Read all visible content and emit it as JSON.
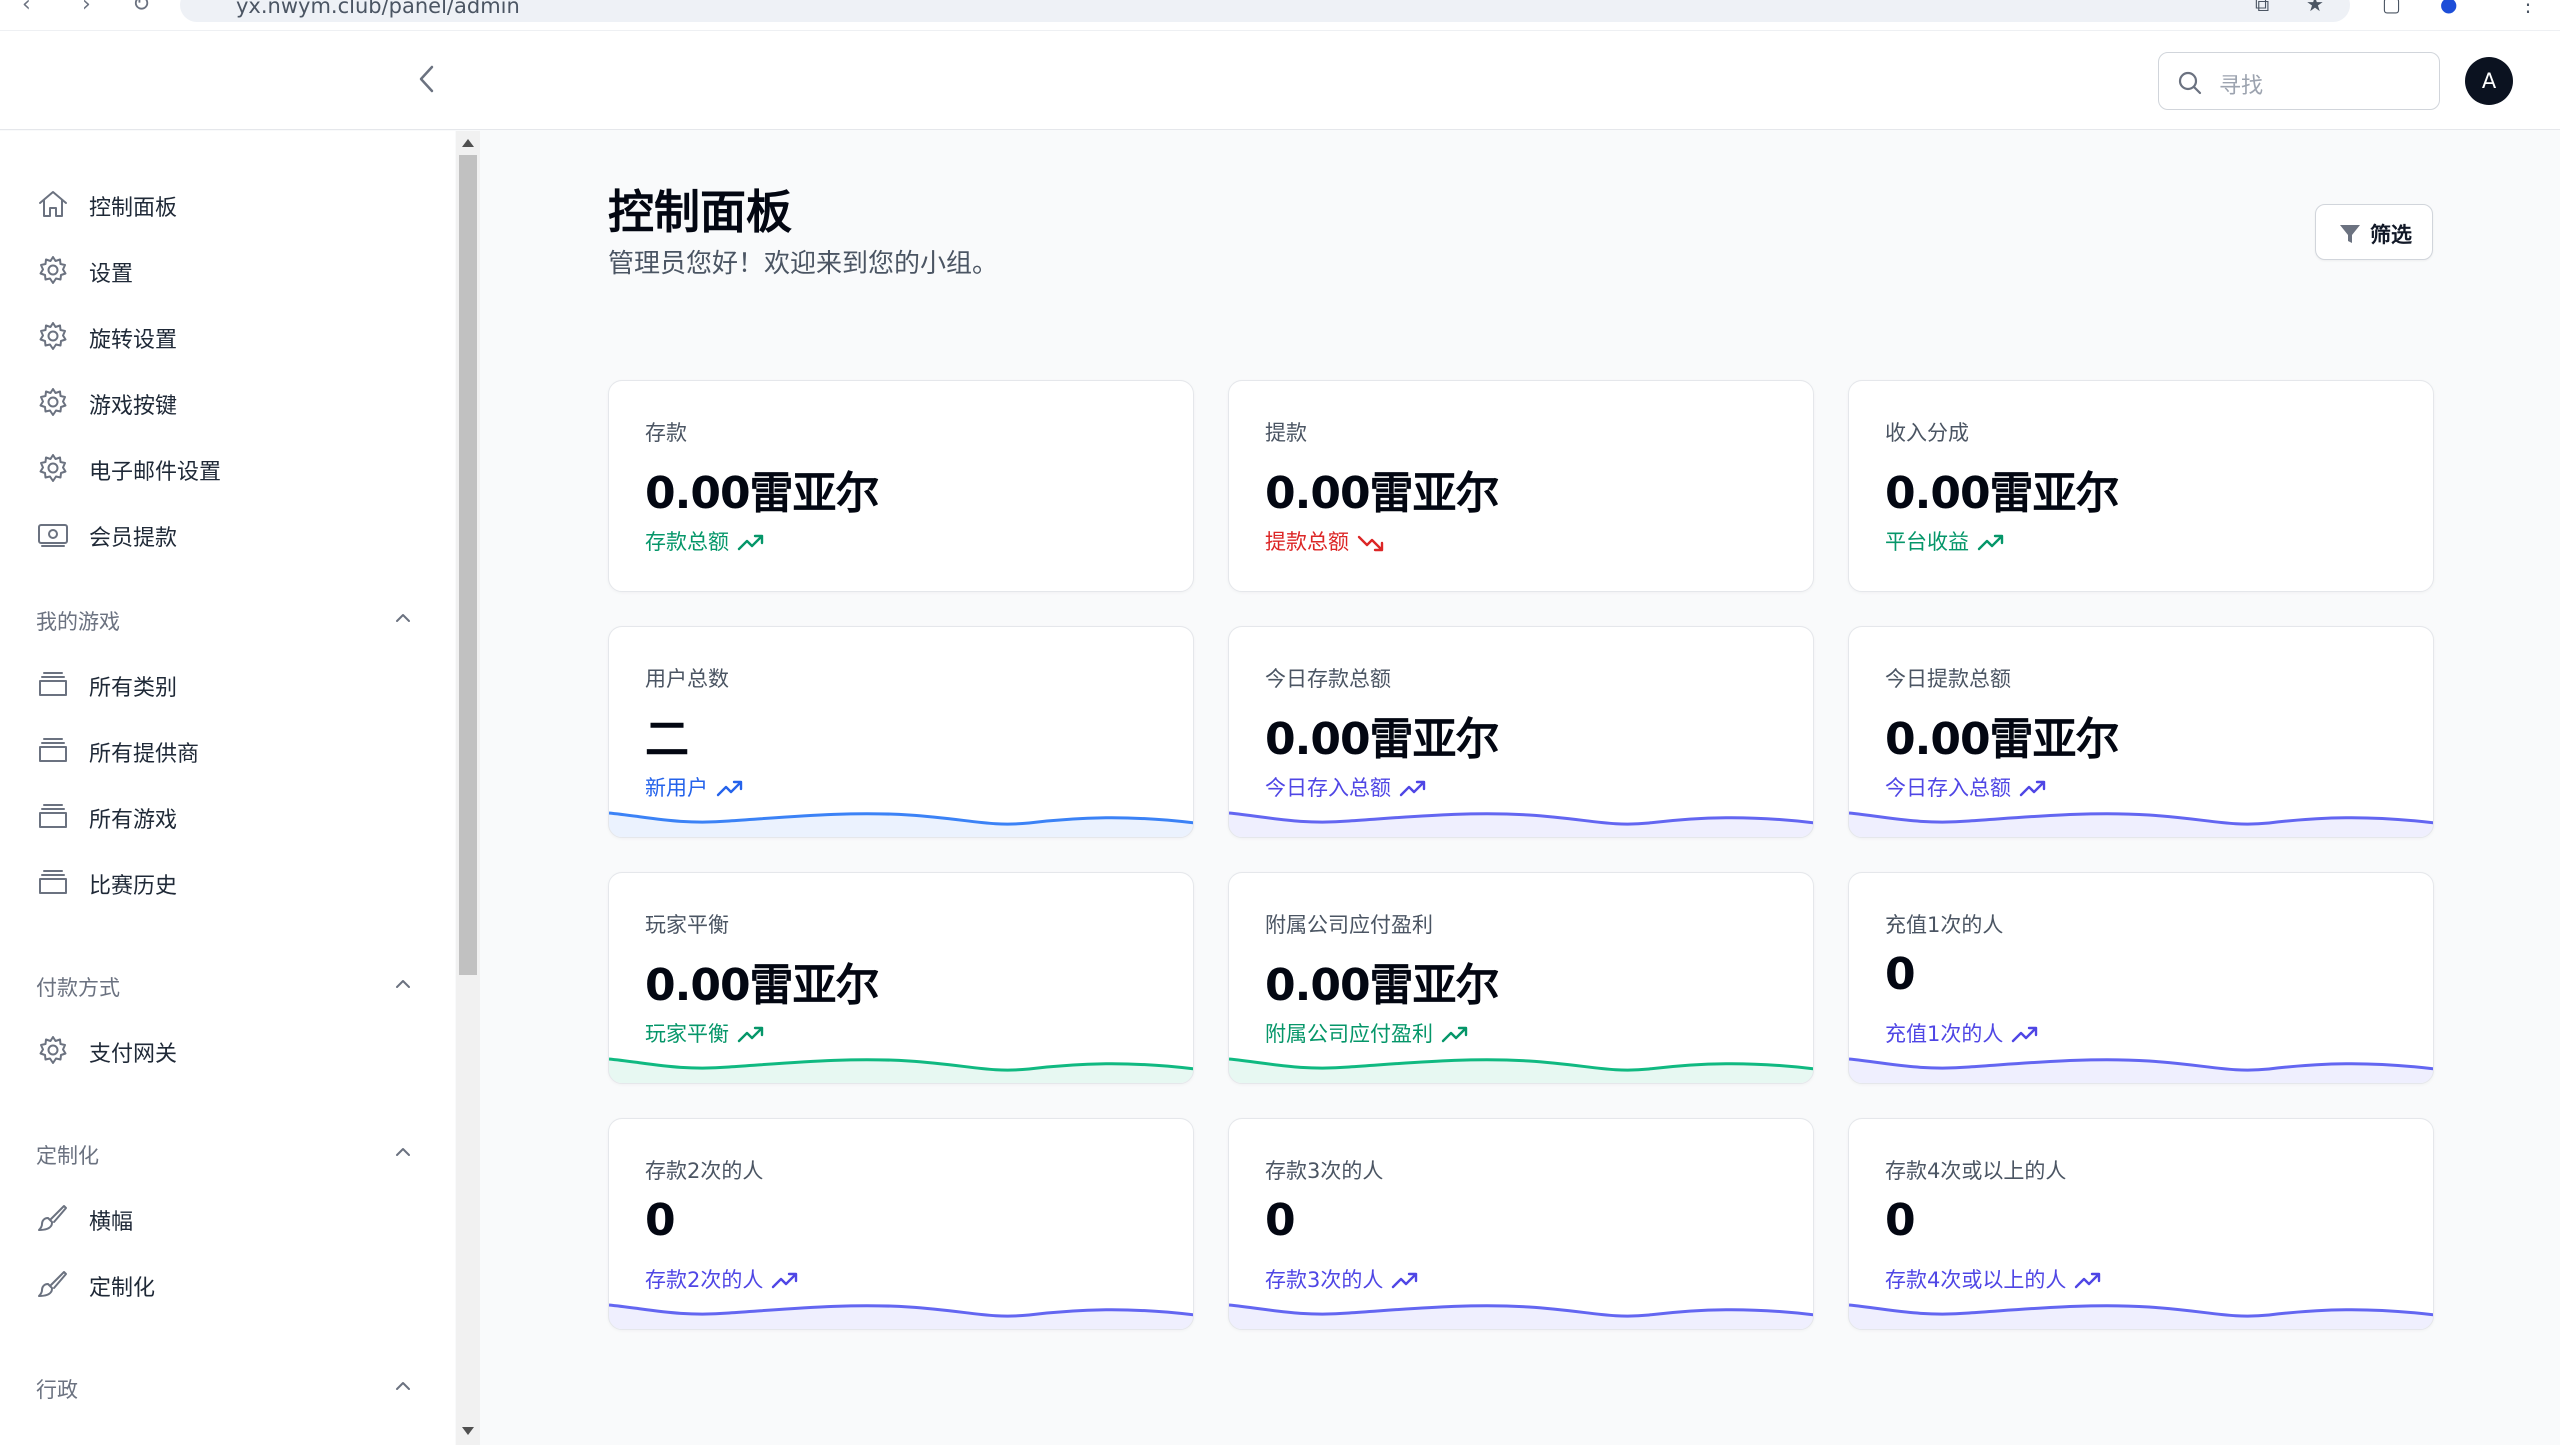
{
  "browser": {
    "url": "yx.nwym.club/panel/admin"
  },
  "header": {
    "search_placeholder": "寻找",
    "avatar_initial": "A"
  },
  "sidebar": {
    "top_items": [
      {
        "label": "控制面板",
        "icon": "home-icon"
      },
      {
        "label": "设置",
        "icon": "gear-icon"
      },
      {
        "label": "旋转设置",
        "icon": "gear-icon"
      },
      {
        "label": "游戏按键",
        "icon": "gear-icon"
      },
      {
        "label": "电子邮件设置",
        "icon": "gear-icon"
      },
      {
        "label": "会员提款",
        "icon": "cash-icon"
      }
    ],
    "sections": [
      {
        "title": "我的游戏",
        "items": [
          {
            "label": "所有类别",
            "icon": "archive-icon"
          },
          {
            "label": "所有提供商",
            "icon": "archive-icon"
          },
          {
            "label": "所有游戏",
            "icon": "archive-icon"
          },
          {
            "label": "比赛历史",
            "icon": "archive-icon"
          }
        ]
      },
      {
        "title": "付款方式",
        "items": [
          {
            "label": "支付网关",
            "icon": "gear-icon"
          }
        ]
      },
      {
        "title": "定制化",
        "items": [
          {
            "label": "横幅",
            "icon": "paintbrush-icon"
          },
          {
            "label": "定制化",
            "icon": "paintbrush-icon"
          }
        ]
      },
      {
        "title": "行政",
        "items": []
      }
    ]
  },
  "main": {
    "title": "控制面板",
    "subtitle": "管理员您好！欢迎来到您的小组。",
    "filter_label": "筛选",
    "colors": {
      "green": "#10b981",
      "red": "#ef4444",
      "blue": "#3b82f6",
      "indigo": "#6366f1"
    },
    "cards": [
      {
        "label": "存款",
        "value": "0.00雷亚尔",
        "desc": "存款总额",
        "trend": "up",
        "color": "#059669",
        "spark": false
      },
      {
        "label": "提款",
        "value": "0.00雷亚尔",
        "desc": "提款总额",
        "trend": "down",
        "color": "#dc2626",
        "spark": false
      },
      {
        "label": "收入分成",
        "value": "0.00雷亚尔",
        "desc": "平台收益",
        "trend": "up",
        "color": "#059669",
        "spark": false
      },
      {
        "label": "用户总数",
        "value": "二",
        "desc": "新用户",
        "trend": "up",
        "color": "#2563eb",
        "spark": true,
        "spark_color": "#3b82f6"
      },
      {
        "label": "今日存款总额",
        "value": "0.00雷亚尔",
        "desc": "今日存入总额",
        "trend": "up",
        "color": "#4f46e5",
        "spark": true,
        "spark_color": "#6366f1"
      },
      {
        "label": "今日提款总额",
        "value": "0.00雷亚尔",
        "desc": "今日存入总额",
        "trend": "up",
        "color": "#4f46e5",
        "spark": true,
        "spark_color": "#6366f1"
      },
      {
        "label": "玩家平衡",
        "value": "0.00雷亚尔",
        "desc": "玩家平衡",
        "trend": "up",
        "color": "#059669",
        "spark": true,
        "spark_color": "#10b981"
      },
      {
        "label": "附属公司应付盈利",
        "value": "0.00雷亚尔",
        "desc": "附属公司应付盈利",
        "trend": "up",
        "color": "#059669",
        "spark": true,
        "spark_color": "#10b981"
      },
      {
        "label": "充值1次的人",
        "value": "0",
        "desc": "充值1次的人",
        "trend": "up",
        "color": "#4f46e5",
        "spark": true,
        "spark_color": "#6366f1"
      },
      {
        "label": "存款2次的人",
        "value": "0",
        "desc": "存款2次的人",
        "trend": "up",
        "color": "#4f46e5",
        "spark": true,
        "spark_color": "#6366f1"
      },
      {
        "label": "存款3次的人",
        "value": "0",
        "desc": "存款3次的人",
        "trend": "up",
        "color": "#4f46e5",
        "spark": true,
        "spark_color": "#6366f1"
      },
      {
        "label": "存款4次或以上的人",
        "value": "0",
        "desc": "存款4次或以上的人",
        "trend": "up",
        "color": "#4f46e5",
        "spark": true,
        "spark_color": "#6366f1"
      }
    ]
  }
}
